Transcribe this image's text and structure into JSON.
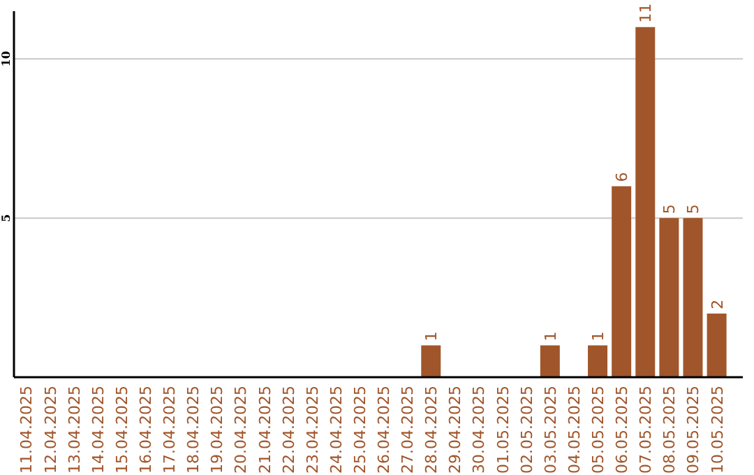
{
  "chart_data": {
    "type": "bar",
    "categories": [
      "11.04.2025",
      "12.04.2025",
      "13.04.2025",
      "14.04.2025",
      "15.04.2025",
      "16.04.2025",
      "17.04.2025",
      "18.04.2025",
      "19.04.2025",
      "20.04.2025",
      "21.04.2025",
      "22.04.2025",
      "23.04.2025",
      "24.04.2025",
      "25.04.2025",
      "26.04.2025",
      "27.04.2025",
      "28.04.2025",
      "29.04.2025",
      "30.04.2025",
      "01.05.2025",
      "02.05.2025",
      "03.05.2025",
      "04.05.2025",
      "05.05.2025",
      "06.05.2025",
      "07.05.2025",
      "08.05.2025",
      "09.05.2025",
      "10.05.2025"
    ],
    "values": [
      0,
      0,
      0,
      0,
      0,
      0,
      0,
      0,
      0,
      0,
      0,
      0,
      0,
      0,
      0,
      0,
      0,
      1,
      0,
      0,
      0,
      0,
      1,
      0,
      1,
      6,
      11,
      5,
      5,
      2
    ],
    "value_labels": [
      null,
      null,
      null,
      null,
      null,
      null,
      null,
      null,
      null,
      null,
      null,
      null,
      null,
      null,
      null,
      null,
      null,
      "1",
      null,
      null,
      null,
      null,
      "1",
      null,
      "1",
      "6",
      "11",
      "5",
      "5",
      "2"
    ],
    "color": "#a0552a",
    "ylim": [
      0,
      11.5
    ],
    "yticks": [
      5,
      10
    ],
    "grid": "y"
  }
}
